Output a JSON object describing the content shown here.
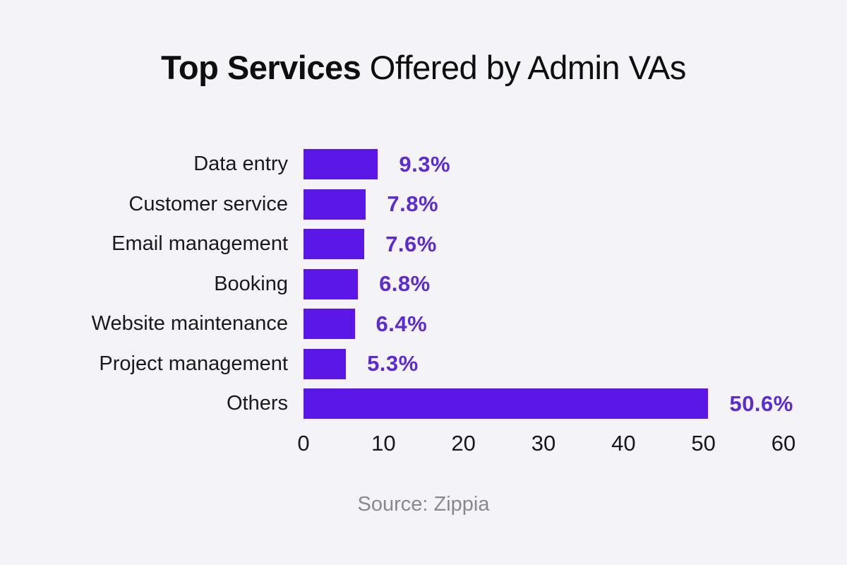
{
  "title": {
    "bold_part": "Top Services",
    "regular_part": " Offered by Admin VAs"
  },
  "chart_data": {
    "type": "bar",
    "orientation": "horizontal",
    "title": "Top Services Offered by Admin VAs",
    "categories": [
      "Data entry",
      "Customer service",
      "Email management",
      "Booking",
      "Website maintenance",
      "Project management",
      "Others"
    ],
    "values": [
      9.3,
      7.8,
      7.6,
      6.8,
      6.4,
      5.3,
      50.6
    ],
    "value_labels": [
      "9.3%",
      "7.8%",
      "7.6%",
      "6.8%",
      "6.4%",
      "5.3%",
      "50.6%"
    ],
    "xlim": [
      0,
      60
    ],
    "x_ticks": [
      0,
      10,
      20,
      30,
      40,
      50,
      60
    ],
    "grid": "off",
    "legend": "none",
    "bar_color": "#5b17e8",
    "value_label_color": "#5c2bd5",
    "background_color": "#f4f3f8"
  },
  "source": "Source: Zippia"
}
